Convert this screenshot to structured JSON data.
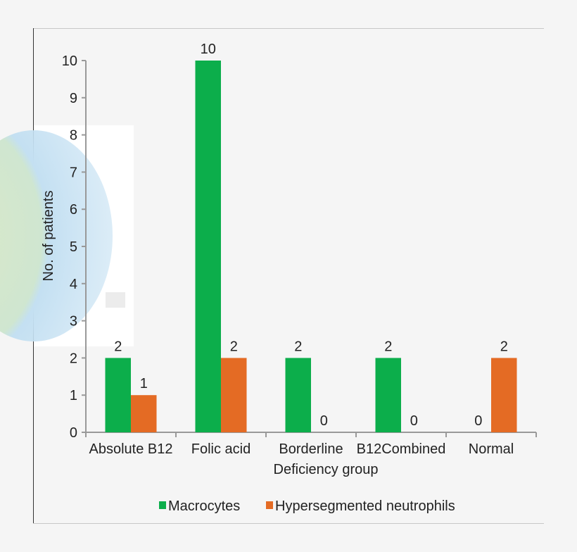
{
  "chart_data": {
    "type": "bar",
    "title": "",
    "xlabel": "Deficiency group",
    "ylabel": "No. of patients",
    "categories": [
      "Absolute B12",
      "Folic acid",
      "Borderline",
      "B12Combined",
      "Normal"
    ],
    "series": [
      {
        "name": "Macrocytes",
        "values": [
          2,
          10,
          2,
          2,
          0
        ],
        "color": "#0cae4b"
      },
      {
        "name": "Hypersegmented neutrophils",
        "values": [
          1,
          2,
          0,
          0,
          2
        ],
        "color": "#e46b24"
      }
    ],
    "ylim": [
      0,
      10
    ],
    "yticks": [
      0,
      1,
      2,
      3,
      4,
      5,
      6,
      7,
      8,
      9,
      10
    ],
    "grid": false,
    "data_labels": true,
    "legend_position": "bottom"
  }
}
